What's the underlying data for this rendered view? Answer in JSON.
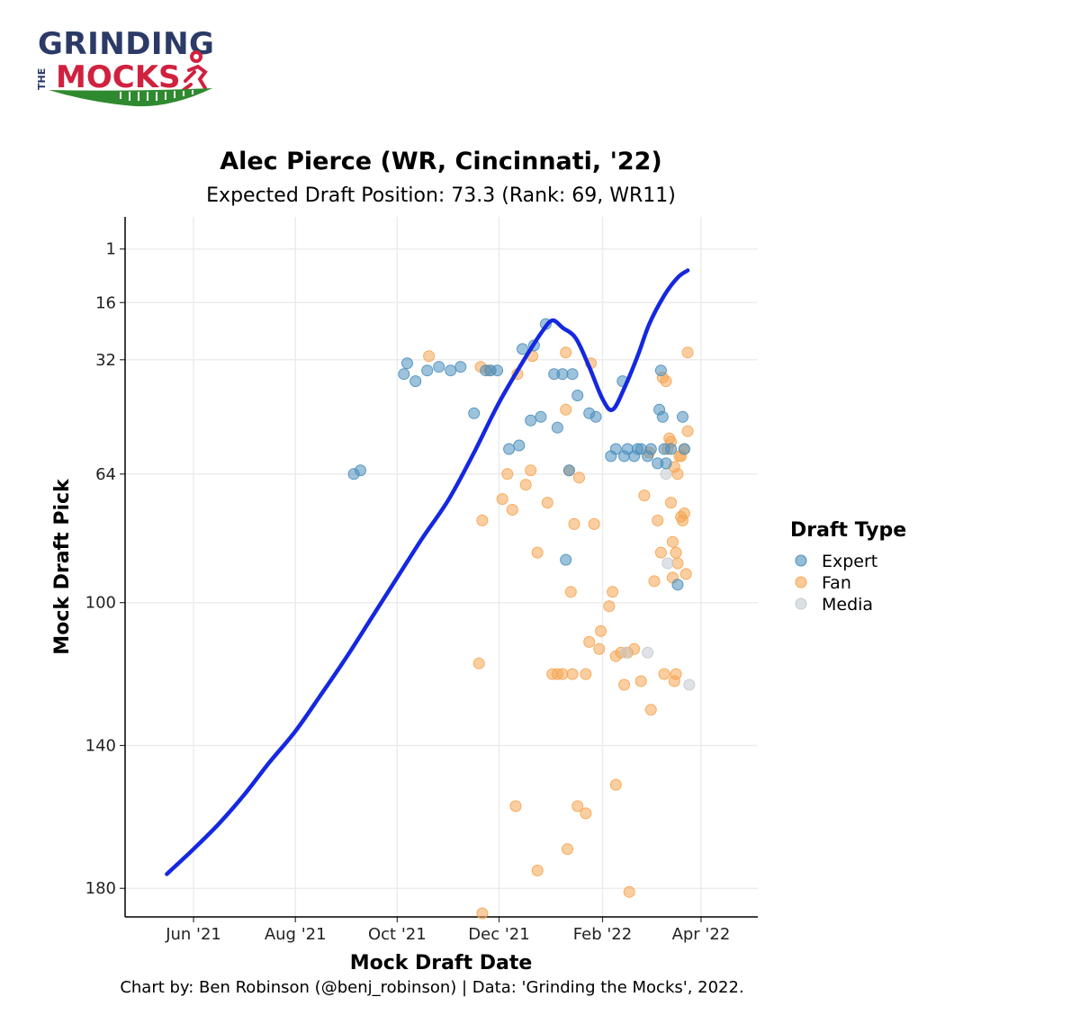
{
  "logo": {
    "line1": "GRINDING",
    "line2_prefix": "THE",
    "line2": "MOCKS",
    "colors": {
      "navy": "#2b3a67",
      "red": "#d0213f",
      "green": "#2f8a2f"
    }
  },
  "chart_data": {
    "type": "scatter",
    "title": "Alec Pierce (WR, Cincinnati, '22)",
    "subtitle": "Expected Draft Position: 73.3 (Rank: 69, WR11)",
    "xlabel": "Mock Draft Date",
    "ylabel": "Mock Draft Pick",
    "caption": "Chart by: Ben Robinson (@benj_robinson) | Data: 'Grinding the Mocks', 2022.",
    "x_axis": {
      "type": "date",
      "range": [
        "2021-04-21",
        "2022-05-05"
      ],
      "ticks": [
        {
          "date": "2021-06-01",
          "label": "Jun '21"
        },
        {
          "date": "2021-08-01",
          "label": "Aug '21"
        },
        {
          "date": "2021-10-01",
          "label": "Oct '21"
        },
        {
          "date": "2021-12-01",
          "label": "Dec '21"
        },
        {
          "date": "2022-02-01",
          "label": "Feb '22"
        },
        {
          "date": "2022-04-01",
          "label": "Apr '22"
        }
      ]
    },
    "y_axis": {
      "reversed": true,
      "range": [
        -8,
        188
      ],
      "ticks": [
        1,
        16,
        32,
        64,
        100,
        140,
        180
      ]
    },
    "grid": true,
    "legend": {
      "title": "Draft Type",
      "position": "right",
      "entries": [
        {
          "name": "Expert",
          "color": "#4c8fbd"
        },
        {
          "name": "Fan",
          "color": "#f6a552"
        },
        {
          "name": "Media",
          "color": "#c5cbd1"
        }
      ]
    },
    "series": [
      {
        "name": "Expert",
        "color": "#4c8fbd",
        "points": [
          [
            "2021-09-05",
            64
          ],
          [
            "2021-09-09",
            63
          ],
          [
            "2021-10-05",
            36
          ],
          [
            "2021-10-07",
            33
          ],
          [
            "2021-10-12",
            38
          ],
          [
            "2021-10-19",
            35
          ],
          [
            "2021-10-26",
            34
          ],
          [
            "2021-11-02",
            35
          ],
          [
            "2021-11-08",
            34
          ],
          [
            "2021-11-16",
            47
          ],
          [
            "2021-11-23",
            35
          ],
          [
            "2021-11-26",
            35
          ],
          [
            "2021-11-30",
            35
          ],
          [
            "2021-12-07",
            57
          ],
          [
            "2021-12-13",
            56
          ],
          [
            "2021-12-15",
            29
          ],
          [
            "2021-12-22",
            28
          ],
          [
            "2021-12-20",
            49
          ],
          [
            "2021-12-26",
            48
          ],
          [
            "2021-12-29",
            22
          ],
          [
            "2022-01-03",
            36
          ],
          [
            "2022-01-05",
            51
          ],
          [
            "2022-01-08",
            36
          ],
          [
            "2022-01-10",
            88
          ],
          [
            "2022-01-12",
            63
          ],
          [
            "2022-01-14",
            36
          ],
          [
            "2022-01-17",
            42
          ],
          [
            "2022-01-24",
            47
          ],
          [
            "2022-01-28",
            48
          ],
          [
            "2022-02-06",
            59
          ],
          [
            "2022-02-09",
            57
          ],
          [
            "2022-02-13",
            38
          ],
          [
            "2022-02-14",
            59
          ],
          [
            "2022-02-16",
            57
          ],
          [
            "2022-02-20",
            59
          ],
          [
            "2022-02-22",
            57
          ],
          [
            "2022-02-24",
            57
          ],
          [
            "2022-02-28",
            59
          ],
          [
            "2022-03-02",
            57
          ],
          [
            "2022-03-06",
            61
          ],
          [
            "2022-03-07",
            46
          ],
          [
            "2022-03-08",
            35
          ],
          [
            "2022-03-09",
            48
          ],
          [
            "2022-03-10",
            57
          ],
          [
            "2022-03-11",
            61
          ],
          [
            "2022-03-14",
            57
          ],
          [
            "2022-03-18",
            95
          ],
          [
            "2022-03-21",
            48
          ],
          [
            "2022-03-22",
            57
          ]
        ]
      },
      {
        "name": "Fan",
        "color": "#f6a552",
        "points": [
          [
            "2021-10-20",
            31
          ],
          [
            "2021-11-20",
            34
          ],
          [
            "2021-11-25",
            35
          ],
          [
            "2021-11-19",
            117
          ],
          [
            "2021-11-21",
            77
          ],
          [
            "2021-12-03",
            71
          ],
          [
            "2021-12-06",
            64
          ],
          [
            "2021-12-09",
            74
          ],
          [
            "2021-12-12",
            36
          ],
          [
            "2021-12-17",
            67
          ],
          [
            "2021-12-20",
            63
          ],
          [
            "2021-12-21",
            31
          ],
          [
            "2021-12-24",
            86
          ],
          [
            "2021-12-30",
            72
          ],
          [
            "2022-01-02",
            120
          ],
          [
            "2022-01-05",
            120
          ],
          [
            "2022-01-08",
            120
          ],
          [
            "2022-01-10",
            30
          ],
          [
            "2022-01-10",
            46
          ],
          [
            "2022-01-12",
            63
          ],
          [
            "2022-01-13",
            97
          ],
          [
            "2022-01-15",
            78
          ],
          [
            "2022-01-18",
            65
          ],
          [
            "2022-01-14",
            120
          ],
          [
            "2022-01-22",
            120
          ],
          [
            "2022-01-25",
            33
          ],
          [
            "2022-01-27",
            78
          ],
          [
            "2022-01-31",
            108
          ],
          [
            "2022-01-24",
            111
          ],
          [
            "2022-01-30",
            113
          ],
          [
            "2022-02-05",
            101
          ],
          [
            "2022-02-07",
            97
          ],
          [
            "2022-02-09",
            115
          ],
          [
            "2022-02-12",
            114
          ],
          [
            "2022-02-16",
            114
          ],
          [
            "2022-02-20",
            113
          ],
          [
            "2022-02-14",
            123
          ],
          [
            "2022-02-24",
            122
          ],
          [
            "2022-02-26",
            70
          ],
          [
            "2022-03-01",
            58
          ],
          [
            "2022-03-02",
            130
          ],
          [
            "2022-03-04",
            94
          ],
          [
            "2022-03-06",
            77
          ],
          [
            "2022-03-08",
            86
          ],
          [
            "2022-03-09",
            37
          ],
          [
            "2022-03-10",
            120
          ],
          [
            "2022-03-11",
            38
          ],
          [
            "2022-03-12",
            57
          ],
          [
            "2022-03-13",
            54
          ],
          [
            "2022-03-14",
            55
          ],
          [
            "2022-03-15",
            93
          ],
          [
            "2022-03-16",
            122
          ],
          [
            "2022-03-17",
            120
          ],
          [
            "2022-03-18",
            64
          ],
          [
            "2022-03-19",
            59
          ],
          [
            "2022-03-20",
            76
          ],
          [
            "2022-03-21",
            77
          ],
          [
            "2022-03-22",
            75
          ],
          [
            "2022-03-23",
            92
          ],
          [
            "2022-03-24",
            30
          ],
          [
            "2022-03-24",
            52
          ],
          [
            "2022-03-22",
            57
          ],
          [
            "2022-03-14",
            72
          ],
          [
            "2022-03-15",
            83
          ],
          [
            "2022-03-17",
            86
          ],
          [
            "2022-03-18",
            89
          ],
          [
            "2022-03-16",
            62
          ],
          [
            "2022-03-20",
            59
          ],
          [
            "2021-11-21",
            187
          ],
          [
            "2021-12-11",
            157
          ],
          [
            "2021-12-24",
            175
          ],
          [
            "2022-01-11",
            169
          ],
          [
            "2022-01-17",
            157
          ],
          [
            "2022-01-22",
            159
          ],
          [
            "2022-02-09",
            151
          ],
          [
            "2022-02-17",
            181
          ]
        ]
      },
      {
        "name": "Media",
        "color": "#c5cbd1",
        "points": [
          [
            "2022-02-15",
            114
          ],
          [
            "2022-02-28",
            114
          ],
          [
            "2022-03-11",
            64
          ],
          [
            "2022-03-12",
            89
          ],
          [
            "2022-03-25",
            123
          ]
        ]
      }
    ],
    "trend": {
      "name": "smoothed trend",
      "color": "#1528e0",
      "points": [
        [
          "2021-05-16",
          176
        ],
        [
          "2021-06-01",
          169
        ],
        [
          "2021-06-16",
          162
        ],
        [
          "2021-07-01",
          154
        ],
        [
          "2021-07-16",
          145
        ],
        [
          "2021-08-01",
          136
        ],
        [
          "2021-08-16",
          126
        ],
        [
          "2021-09-01",
          115
        ],
        [
          "2021-09-16",
          104
        ],
        [
          "2021-10-01",
          93
        ],
        [
          "2021-10-16",
          82
        ],
        [
          "2021-11-01",
          71
        ],
        [
          "2021-11-16",
          58
        ],
        [
          "2021-12-01",
          44
        ],
        [
          "2021-12-16",
          32
        ],
        [
          "2021-12-27",
          24
        ],
        [
          "2022-01-02",
          21
        ],
        [
          "2022-01-08",
          23
        ],
        [
          "2022-01-16",
          26
        ],
        [
          "2022-01-24",
          34
        ],
        [
          "2022-02-01",
          43
        ],
        [
          "2022-02-07",
          46
        ],
        [
          "2022-02-14",
          40
        ],
        [
          "2022-02-22",
          31
        ],
        [
          "2022-03-01",
          22
        ],
        [
          "2022-03-10",
          14
        ],
        [
          "2022-03-18",
          9
        ],
        [
          "2022-03-24",
          7
        ]
      ]
    }
  }
}
